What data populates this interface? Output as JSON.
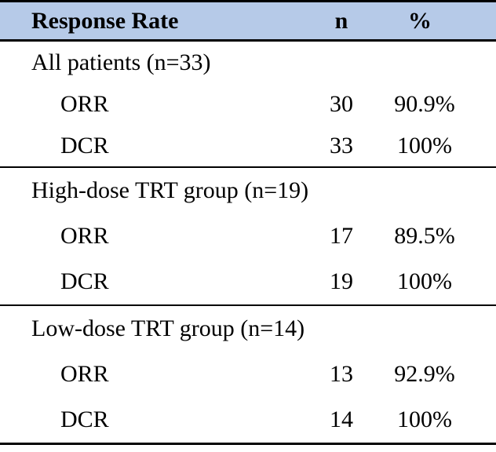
{
  "table": {
    "title": "Response Rate table",
    "colors": {
      "header_bg": "#B6CAE8",
      "rule": "#000000",
      "text": "#000000",
      "page_bg": "#FFFFFF"
    },
    "header": {
      "response_rate": "Response Rate",
      "n": "n",
      "percent": "%"
    },
    "sections": [
      {
        "label": "All patients (n=33)",
        "rows": [
          {
            "measure": "ORR",
            "n": "30",
            "pct": "90.9%"
          },
          {
            "measure": "DCR",
            "n": "33",
            "pct": "100%"
          }
        ]
      },
      {
        "label": "High-dose TRT group (n=19)",
        "rows": [
          {
            "measure": "ORR",
            "n": "17",
            "pct": "89.5%"
          },
          {
            "measure": "DCR",
            "n": "19",
            "pct": "100%"
          }
        ]
      },
      {
        "label": "Low-dose TRT group (n=14)",
        "rows": [
          {
            "measure": "ORR",
            "n": "13",
            "pct": "92.9%"
          },
          {
            "measure": "DCR",
            "n": "14",
            "pct": "100%"
          }
        ]
      }
    ]
  }
}
